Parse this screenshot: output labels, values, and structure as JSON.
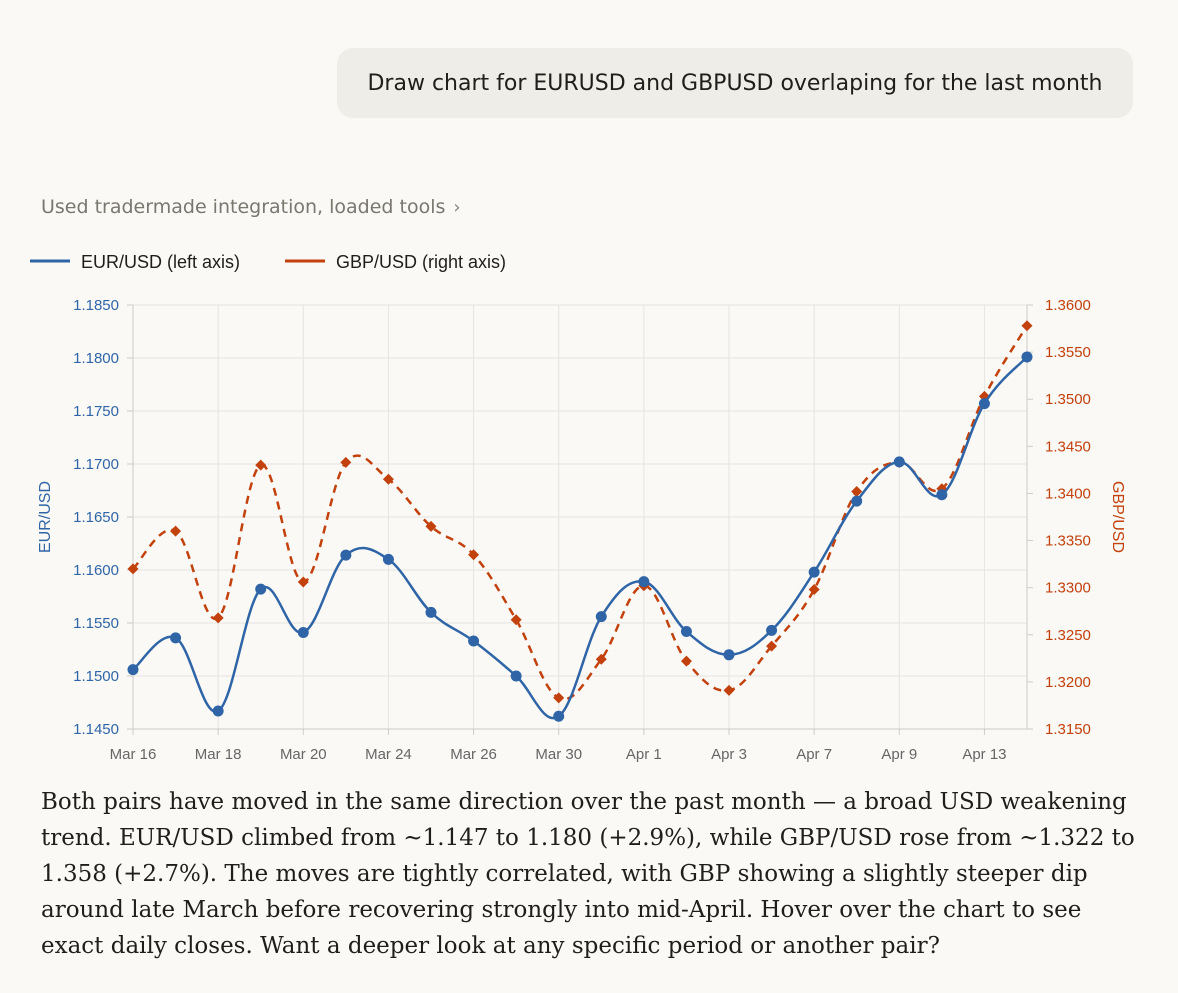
{
  "user_message": "Draw chart for EURUSD and GBPUSD overlaping for the last month",
  "tools_line": {
    "label": "Used tradermade integration, loaded tools",
    "chevron": "›"
  },
  "chart_data": {
    "type": "line",
    "categories": [
      "Mar 16",
      "Mar 17",
      "Mar 18",
      "Mar 19",
      "Mar 20",
      "Mar 23",
      "Mar 24",
      "Mar 25",
      "Mar 26",
      "Mar 27",
      "Mar 30",
      "Mar 31",
      "Apr 1",
      "Apr 2",
      "Apr 3",
      "Apr 6",
      "Apr 7",
      "Apr 8",
      "Apr 9",
      "Apr 10",
      "Apr 13",
      "Apr 14"
    ],
    "x_tick_labels": [
      "Mar 16",
      "",
      "Mar 18",
      "",
      "Mar 20",
      "",
      "Mar 24",
      "",
      "Mar 26",
      "",
      "Mar 30",
      "",
      "Apr 1",
      "",
      "Apr 3",
      "",
      "Apr 7",
      "",
      "Apr 9",
      "",
      "Apr 13",
      ""
    ],
    "series": [
      {
        "name": "EUR/USD (left axis)",
        "axis": "left",
        "color": "#2f65a7",
        "style": "solid",
        "marker": "circle",
        "values": [
          1.1506,
          1.1536,
          1.1467,
          1.1582,
          1.1541,
          1.1614,
          1.161,
          1.156,
          1.1533,
          1.15,
          1.1462,
          1.1556,
          1.1589,
          1.1542,
          1.152,
          1.1543,
          1.1598,
          1.1665,
          1.1702,
          1.1671,
          1.1757,
          1.1801
        ]
      },
      {
        "name": "GBP/USD (right axis)",
        "axis": "right",
        "color": "#c2410c",
        "style": "dashed",
        "marker": "diamond",
        "values": [
          1.332,
          1.336,
          1.3268,
          1.343,
          1.3306,
          1.3433,
          1.3415,
          1.3365,
          1.3335,
          1.3266,
          1.3183,
          1.3224,
          1.3302,
          1.3222,
          1.3191,
          1.3238,
          1.3298,
          1.3402,
          1.3433,
          1.3405,
          1.3503,
          1.3578
        ]
      }
    ],
    "y_left": {
      "label": "EUR/USD",
      "range": [
        1.145,
        1.185
      ],
      "ticks": [
        "1.1450",
        "1.1500",
        "1.1550",
        "1.1600",
        "1.1650",
        "1.1700",
        "1.1750",
        "1.1800",
        "1.1850"
      ]
    },
    "y_right": {
      "label": "GBP/USD",
      "range": [
        1.315,
        1.36
      ],
      "ticks": [
        "1.3150",
        "1.3200",
        "1.3250",
        "1.3300",
        "1.3350",
        "1.3400",
        "1.3450",
        "1.3500",
        "1.3550",
        "1.3600"
      ]
    },
    "grid": true,
    "legend_position": "top-left"
  },
  "reply_text": "Both pairs have moved in the same direction over the past month — a broad USD weakening trend. EUR/USD climbed from ~1.147 to 1.180 (+2.9%), while GBP/USD rose from ~1.322 to 1.358 (+2.7%). The moves are tightly correlated, with GBP showing a slightly steeper dip around late March before recovering strongly into mid-April. Hover over the chart to see exact daily closes. Want a deeper look at any specific period or another pair?"
}
